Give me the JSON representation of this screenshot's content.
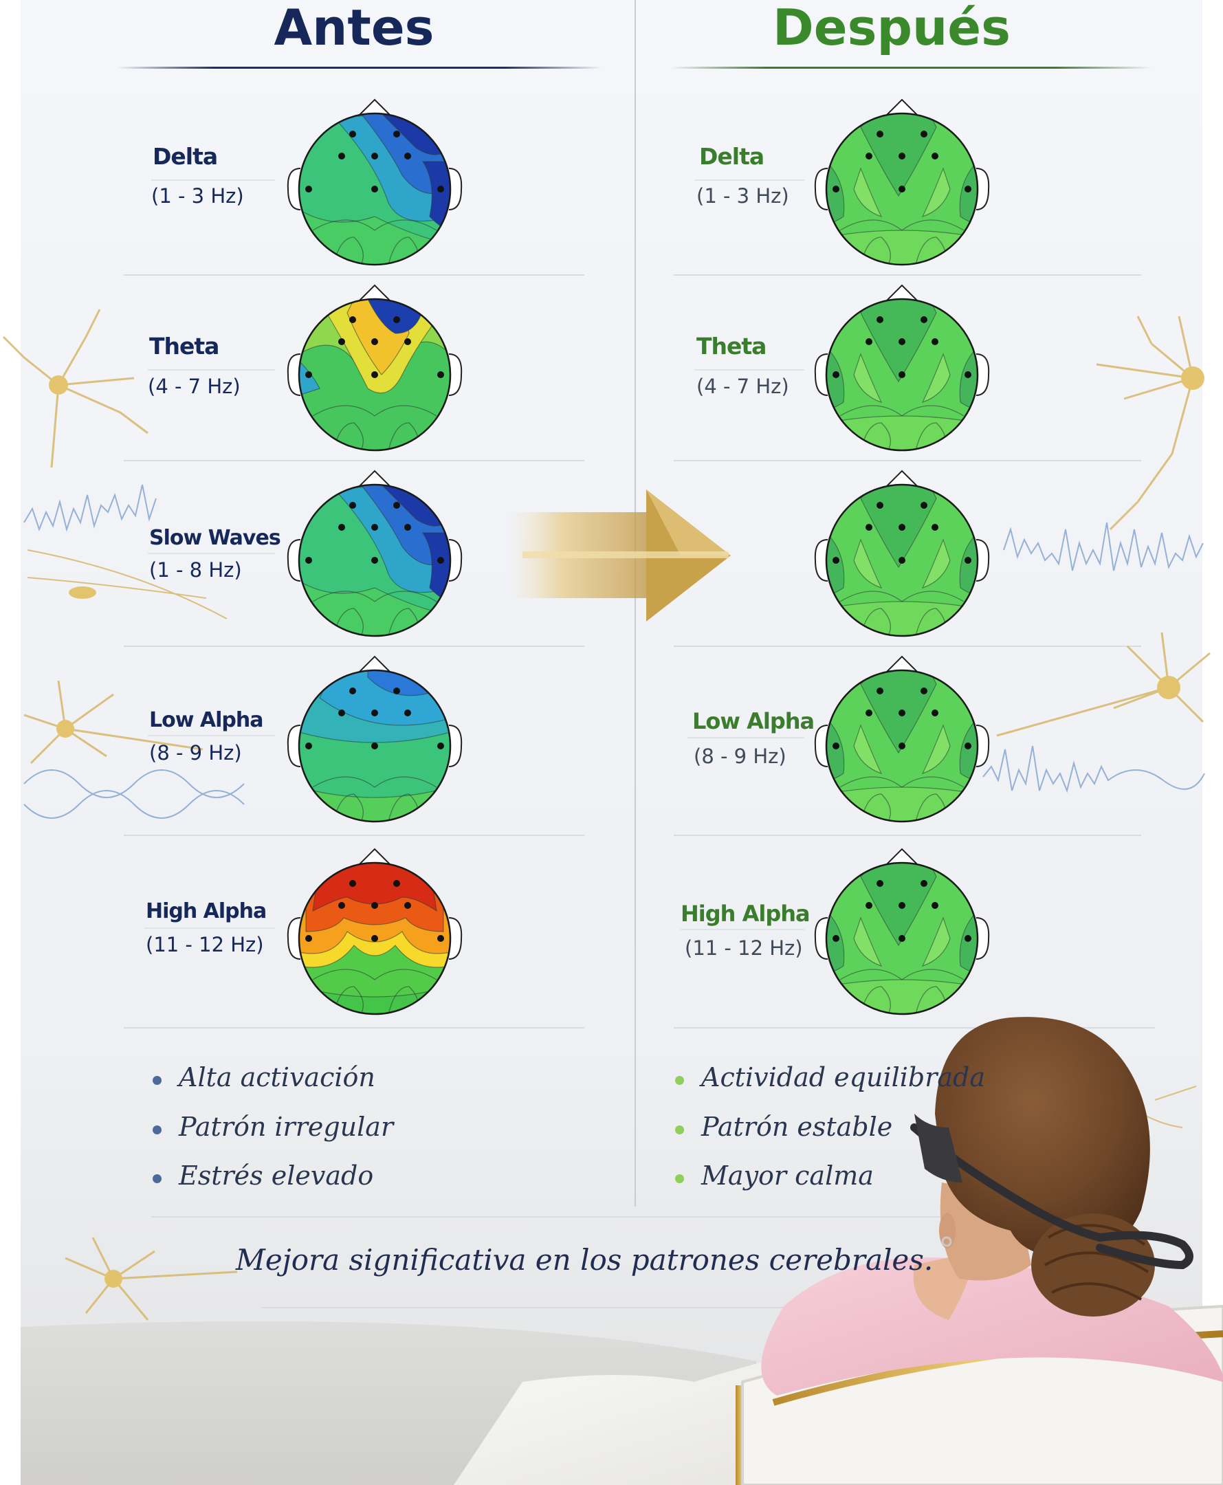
{
  "columns": {
    "before": {
      "title": "Antes",
      "color": "#16285a",
      "bands": [
        {
          "name": "Delta",
          "range": "(1 - 3 Hz)",
          "state": "low-frontal-right"
        },
        {
          "name": "Theta",
          "range": "(4 - 7 Hz)",
          "state": "elevated-central"
        },
        {
          "name": "Slow Waves",
          "range": "(1 - 8 Hz)",
          "state": "low-frontal-right"
        },
        {
          "name": "Low Alpha",
          "range": "(8 - 9 Hz)",
          "state": "low-frontal"
        },
        {
          "name": "High Alpha",
          "range": "(11 - 12 Hz)",
          "state": "high-frontal"
        }
      ],
      "bullets": [
        "Alta activación",
        "Patrón irregular",
        "Estrés elevado"
      ],
      "bullet_color": "#4a6a9a"
    },
    "after": {
      "title": "Después",
      "color": "#3a8a2c",
      "bands": [
        {
          "name": "Delta",
          "range": "(1 - 3 Hz)",
          "state": "balanced"
        },
        {
          "name": "Theta",
          "range": "(4 - 7 Hz)",
          "state": "balanced"
        },
        {
          "name": "",
          "range": "",
          "state": "balanced"
        },
        {
          "name": "Low Alpha",
          "range": "(8 - 9 Hz)",
          "state": "balanced"
        },
        {
          "name": "High Alpha",
          "range": "(11 - 12 Hz)",
          "state": "balanced"
        }
      ],
      "bullets": [
        "Actividad equilibrada",
        "Patrón estable",
        "Mayor calma"
      ],
      "bullet_color": "#8ccf5a"
    }
  },
  "summary": "Mejora significativa en los patrones cerebrales.",
  "arrow_color": "#c8a24a",
  "icons": [
    "neuron-icon",
    "brainwave-icon",
    "arrow-right-icon",
    "eeg-headset-icon"
  ]
}
